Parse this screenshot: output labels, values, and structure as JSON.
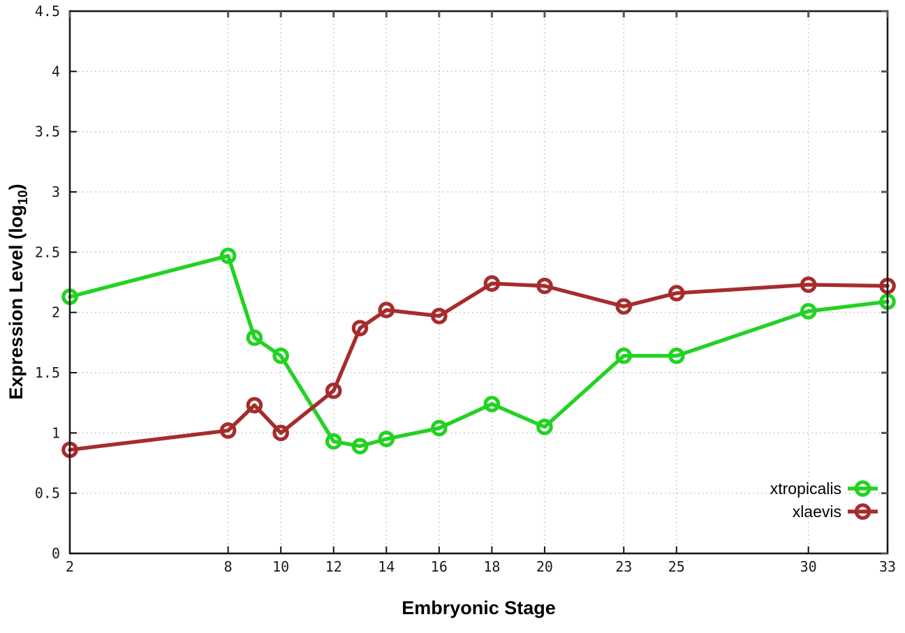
{
  "chart_data": {
    "type": "line",
    "title": "",
    "xlabel": "Embryonic Stage",
    "ylabel": {
      "prefix": "Expression Level (log",
      "subscript": "10",
      "suffix": ")"
    },
    "xlim": [
      2,
      33
    ],
    "ylim": [
      0,
      4.5
    ],
    "grid": true,
    "legend_position": "bottom-right",
    "xticks": [
      2,
      8,
      10,
      12,
      14,
      16,
      18,
      20,
      23,
      25,
      30,
      33
    ],
    "yticks": [
      0,
      0.5,
      1,
      1.5,
      2,
      2.5,
      3,
      3.5,
      4,
      4.5
    ],
    "x": [
      2,
      8,
      9,
      10,
      12,
      13,
      14,
      16,
      18,
      20,
      23,
      25,
      30,
      33
    ],
    "series": [
      {
        "name": "xtropicalis",
        "color": "#23d223",
        "values": [
          2.13,
          2.47,
          1.79,
          1.64,
          0.93,
          0.89,
          0.95,
          1.04,
          1.24,
          1.05,
          1.64,
          1.64,
          2.01,
          2.09
        ]
      },
      {
        "name": "xlaevis",
        "color": "#a62c2c",
        "values": [
          0.86,
          1.02,
          1.23,
          1.0,
          1.35,
          1.87,
          2.02,
          1.97,
          2.24,
          2.22,
          2.05,
          2.16,
          2.23,
          2.22
        ]
      }
    ],
    "style": {
      "grid_color": "#bcbcbc",
      "border_color": "#1a1a1a",
      "background": "#ffffff",
      "line_width": 5.4,
      "marker_radius": 9.2,
      "marker_stroke": 5.2
    }
  }
}
